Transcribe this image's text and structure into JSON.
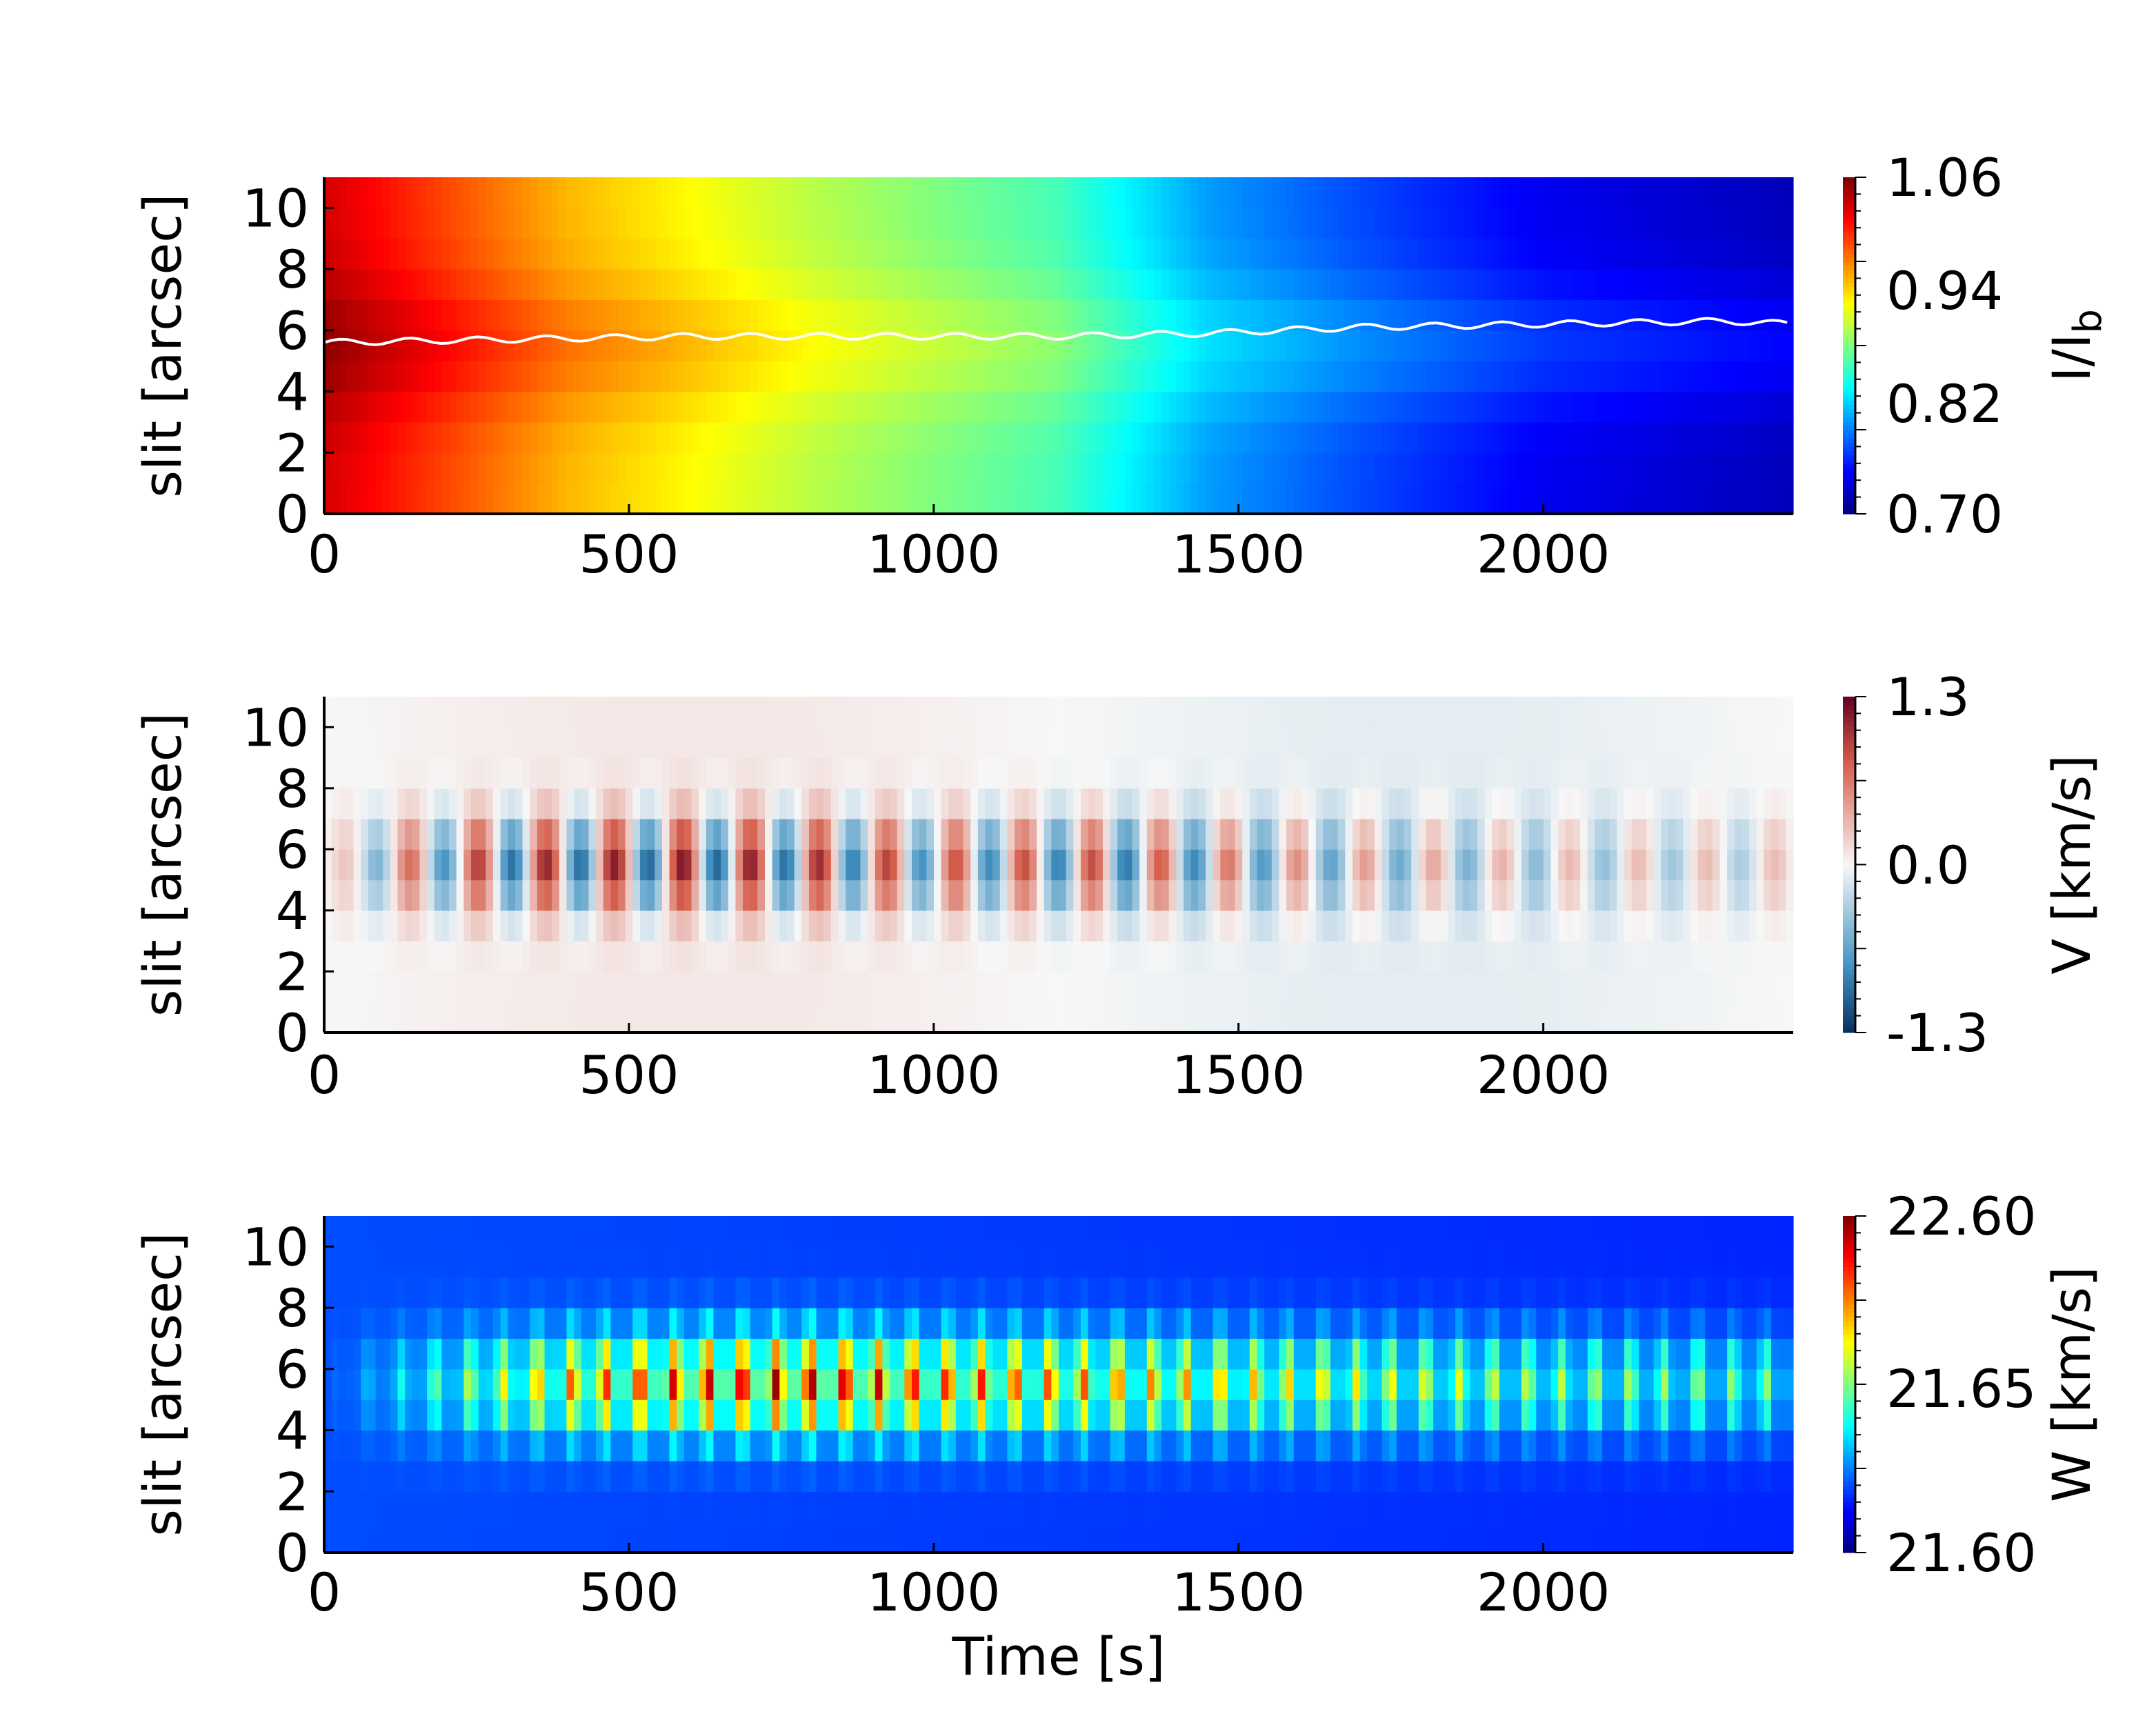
{
  "chart_data": [
    {
      "type": "heatmap",
      "panel": "intensity",
      "ylabel": "slit [arcsec]",
      "xlim": [
        0,
        2410
      ],
      "ylim": [
        0,
        11
      ],
      "x_ticks": [
        "0",
        "500",
        "1000",
        "1500",
        "2000"
      ],
      "y_ticks": [
        "0",
        "2",
        "4",
        "6",
        "8",
        "10"
      ],
      "colormap": "jet",
      "colorbar": {
        "label_main": "I/I",
        "label_sub": "b",
        "range": [
          0.7,
          1.06
        ],
        "ticks": [
          "1.06",
          "0.94",
          "0.82",
          "0.70"
        ]
      },
      "value_profile": {
        "time": [
          0,
          400,
          800,
          1200,
          1450,
          1700,
          2000,
          2410
        ],
        "value": [
          1.03,
          0.95,
          0.9,
          0.86,
          0.8,
          0.77,
          0.74,
          0.72
        ]
      },
      "overlay_line": {
        "color": "#ffffff",
        "time": [
          0,
          300,
          600,
          900,
          1200,
          1450,
          1700,
          2000,
          2300,
          2410
        ],
        "slit": [
          5.6,
          5.7,
          5.8,
          5.8,
          5.8,
          5.9,
          6.1,
          6.2,
          6.3,
          6.2
        ]
      }
    },
    {
      "type": "heatmap",
      "panel": "velocity",
      "ylabel": "slit [arcsec]",
      "xlim": [
        0,
        2410
      ],
      "ylim": [
        0,
        11
      ],
      "x_ticks": [
        "0",
        "500",
        "1000",
        "1500",
        "2000"
      ],
      "y_ticks": [
        "0",
        "2",
        "4",
        "6",
        "8",
        "10"
      ],
      "colormap": "RdBu_r",
      "colorbar": {
        "label_main": "V [km/s]",
        "range": [
          -1.3,
          1.3
        ],
        "ticks": [
          "1.3",
          "0.0",
          "-1.3"
        ]
      },
      "oscillation": {
        "period_s": 112,
        "center_slit": 5.5,
        "amplitude_envelope": {
          "time": [
            0,
            100,
            300,
            600,
            800,
            1000,
            1300,
            1600,
            2000,
            2410
          ],
          "value": [
            0.1,
            0.6,
            1.0,
            1.1,
            1.0,
            0.8,
            0.9,
            0.6,
            0.4,
            0.3
          ]
        }
      }
    },
    {
      "type": "heatmap",
      "panel": "width",
      "ylabel": "slit [arcsec]",
      "xlabel": "Time [s]",
      "xlim": [
        0,
        2410
      ],
      "ylim": [
        0,
        11
      ],
      "x_ticks": [
        "0",
        "500",
        "1000",
        "1500",
        "2000"
      ],
      "y_ticks": [
        "0",
        "2",
        "4",
        "6",
        "8",
        "10"
      ],
      "colormap": "jet",
      "colorbar": {
        "label_main": "W [km/s]",
        "range": [
          21.6,
          22.6
        ],
        "ticks": [
          "22.60",
          "21.65",
          "21.60"
        ]
      },
      "oscillation": {
        "period_s": 56,
        "center_slit": 5.5,
        "amplitude_envelope": {
          "time": [
            0,
            130,
            400,
            600,
            800,
            1000,
            1300,
            1600,
            2000,
            2410
          ],
          "value": [
            0.0,
            0.2,
            0.6,
            0.75,
            0.8,
            0.7,
            0.6,
            0.5,
            0.4,
            0.35
          ]
        }
      }
    }
  ]
}
